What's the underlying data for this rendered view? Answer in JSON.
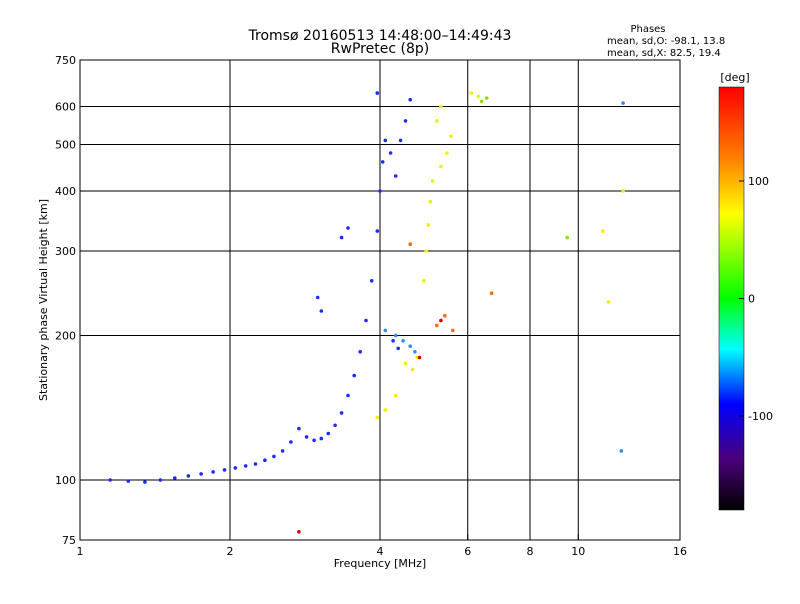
{
  "title_line1": "Tromsø 20160513 14:48:00–14:49:43",
  "title_line2": "RwPretec (8p)",
  "stats": {
    "heading": "Phases",
    "line_o": "mean, sd,O: -98.1, 13.8",
    "line_x": "mean, sd,X:  82.5, 19.4"
  },
  "colorbar": {
    "unit_label": "[deg]",
    "range": [
      -180,
      180
    ],
    "ticks": [
      100,
      0,
      -100
    ]
  },
  "chart_data": {
    "type": "scatter",
    "xlabel": "Frequency [MHz]",
    "ylabel": "Stationary phase Virtual Height [km]",
    "x_scale": "log",
    "y_scale": "log",
    "xlim": [
      1,
      16
    ],
    "ylim": [
      75,
      750
    ],
    "x_ticks": [
      1,
      2,
      4,
      6,
      8,
      10,
      16
    ],
    "y_ticks": [
      75,
      100,
      200,
      300,
      400,
      500,
      600,
      750
    ],
    "x_grid": [
      1,
      2,
      4,
      6,
      8,
      10,
      16
    ],
    "y_grid": [
      100,
      200,
      300,
      400,
      500,
      600
    ],
    "grid": true,
    "color_by": "phase [deg]",
    "point_groups": [
      {
        "color": "#1f2aff",
        "phase_deg": -105,
        "points": [
          [
            1.15,
            100
          ],
          [
            1.25,
            99.5
          ],
          [
            1.35,
            99
          ],
          [
            1.45,
            100
          ],
          [
            1.55,
            101
          ],
          [
            1.65,
            102
          ],
          [
            1.75,
            103
          ],
          [
            1.85,
            104
          ],
          [
            1.95,
            105
          ],
          [
            2.05,
            106
          ],
          [
            2.15,
            107
          ],
          [
            2.25,
            108
          ],
          [
            2.35,
            110
          ],
          [
            2.45,
            112
          ],
          [
            2.55,
            115
          ],
          [
            2.65,
            120
          ],
          [
            2.75,
            128
          ],
          [
            2.85,
            123
          ],
          [
            2.95,
            121
          ],
          [
            3.05,
            122
          ],
          [
            3.15,
            125
          ],
          [
            3.25,
            130
          ],
          [
            3.35,
            138
          ],
          [
            3.45,
            150
          ],
          [
            3.55,
            165
          ],
          [
            3.65,
            185
          ],
          [
            3.75,
            215
          ],
          [
            3.85,
            260
          ],
          [
            3.95,
            330
          ],
          [
            4.0,
            400
          ],
          [
            4.05,
            460
          ],
          [
            4.1,
            510
          ],
          [
            4.2,
            480
          ],
          [
            4.3,
            430
          ],
          [
            4.4,
            510
          ],
          [
            4.5,
            560
          ],
          [
            4.6,
            620
          ],
          [
            3.0,
            240
          ],
          [
            3.05,
            225
          ],
          [
            3.35,
            320
          ],
          [
            3.45,
            335
          ],
          [
            3.95,
            640
          ],
          [
            4.25,
            195
          ],
          [
            4.35,
            188
          ]
        ]
      },
      {
        "color": "#2f8bff",
        "phase_deg": -80,
        "points": [
          [
            4.1,
            205
          ],
          [
            4.3,
            200
          ],
          [
            4.45,
            195
          ],
          [
            4.6,
            190
          ],
          [
            4.7,
            185
          ],
          [
            12.3,
            610
          ],
          [
            12.2,
            115
          ]
        ]
      },
      {
        "color": "#f0f000",
        "phase_deg": 100,
        "points": [
          [
            3.95,
            135
          ],
          [
            4.1,
            140
          ],
          [
            4.3,
            150
          ],
          [
            4.5,
            175
          ],
          [
            4.65,
            170
          ],
          [
            4.75,
            180
          ],
          [
            4.9,
            260
          ],
          [
            4.95,
            300
          ],
          [
            5.0,
            340
          ],
          [
            5.05,
            380
          ],
          [
            5.1,
            420
          ],
          [
            5.3,
            450
          ],
          [
            5.45,
            480
          ],
          [
            5.55,
            520
          ],
          [
            5.2,
            560
          ],
          [
            5.3,
            600
          ],
          [
            6.1,
            640
          ],
          [
            6.3,
            630
          ],
          [
            12.3,
            400
          ],
          [
            11.2,
            330
          ],
          [
            11.5,
            235
          ]
        ]
      },
      {
        "color": "#8fe000",
        "phase_deg": 65,
        "points": [
          [
            6.4,
            615
          ],
          [
            6.55,
            625
          ],
          [
            9.5,
            320
          ]
        ]
      },
      {
        "color": "#ff6a00",
        "phase_deg": 140,
        "points": [
          [
            5.2,
            210
          ],
          [
            5.4,
            220
          ],
          [
            6.7,
            245
          ],
          [
            4.6,
            310
          ],
          [
            5.6,
            205
          ]
        ]
      },
      {
        "color": "#d00000",
        "phase_deg": 165,
        "points": [
          [
            5.3,
            215
          ],
          [
            4.8,
            180
          ],
          [
            2.75,
            78
          ]
        ]
      }
    ]
  }
}
